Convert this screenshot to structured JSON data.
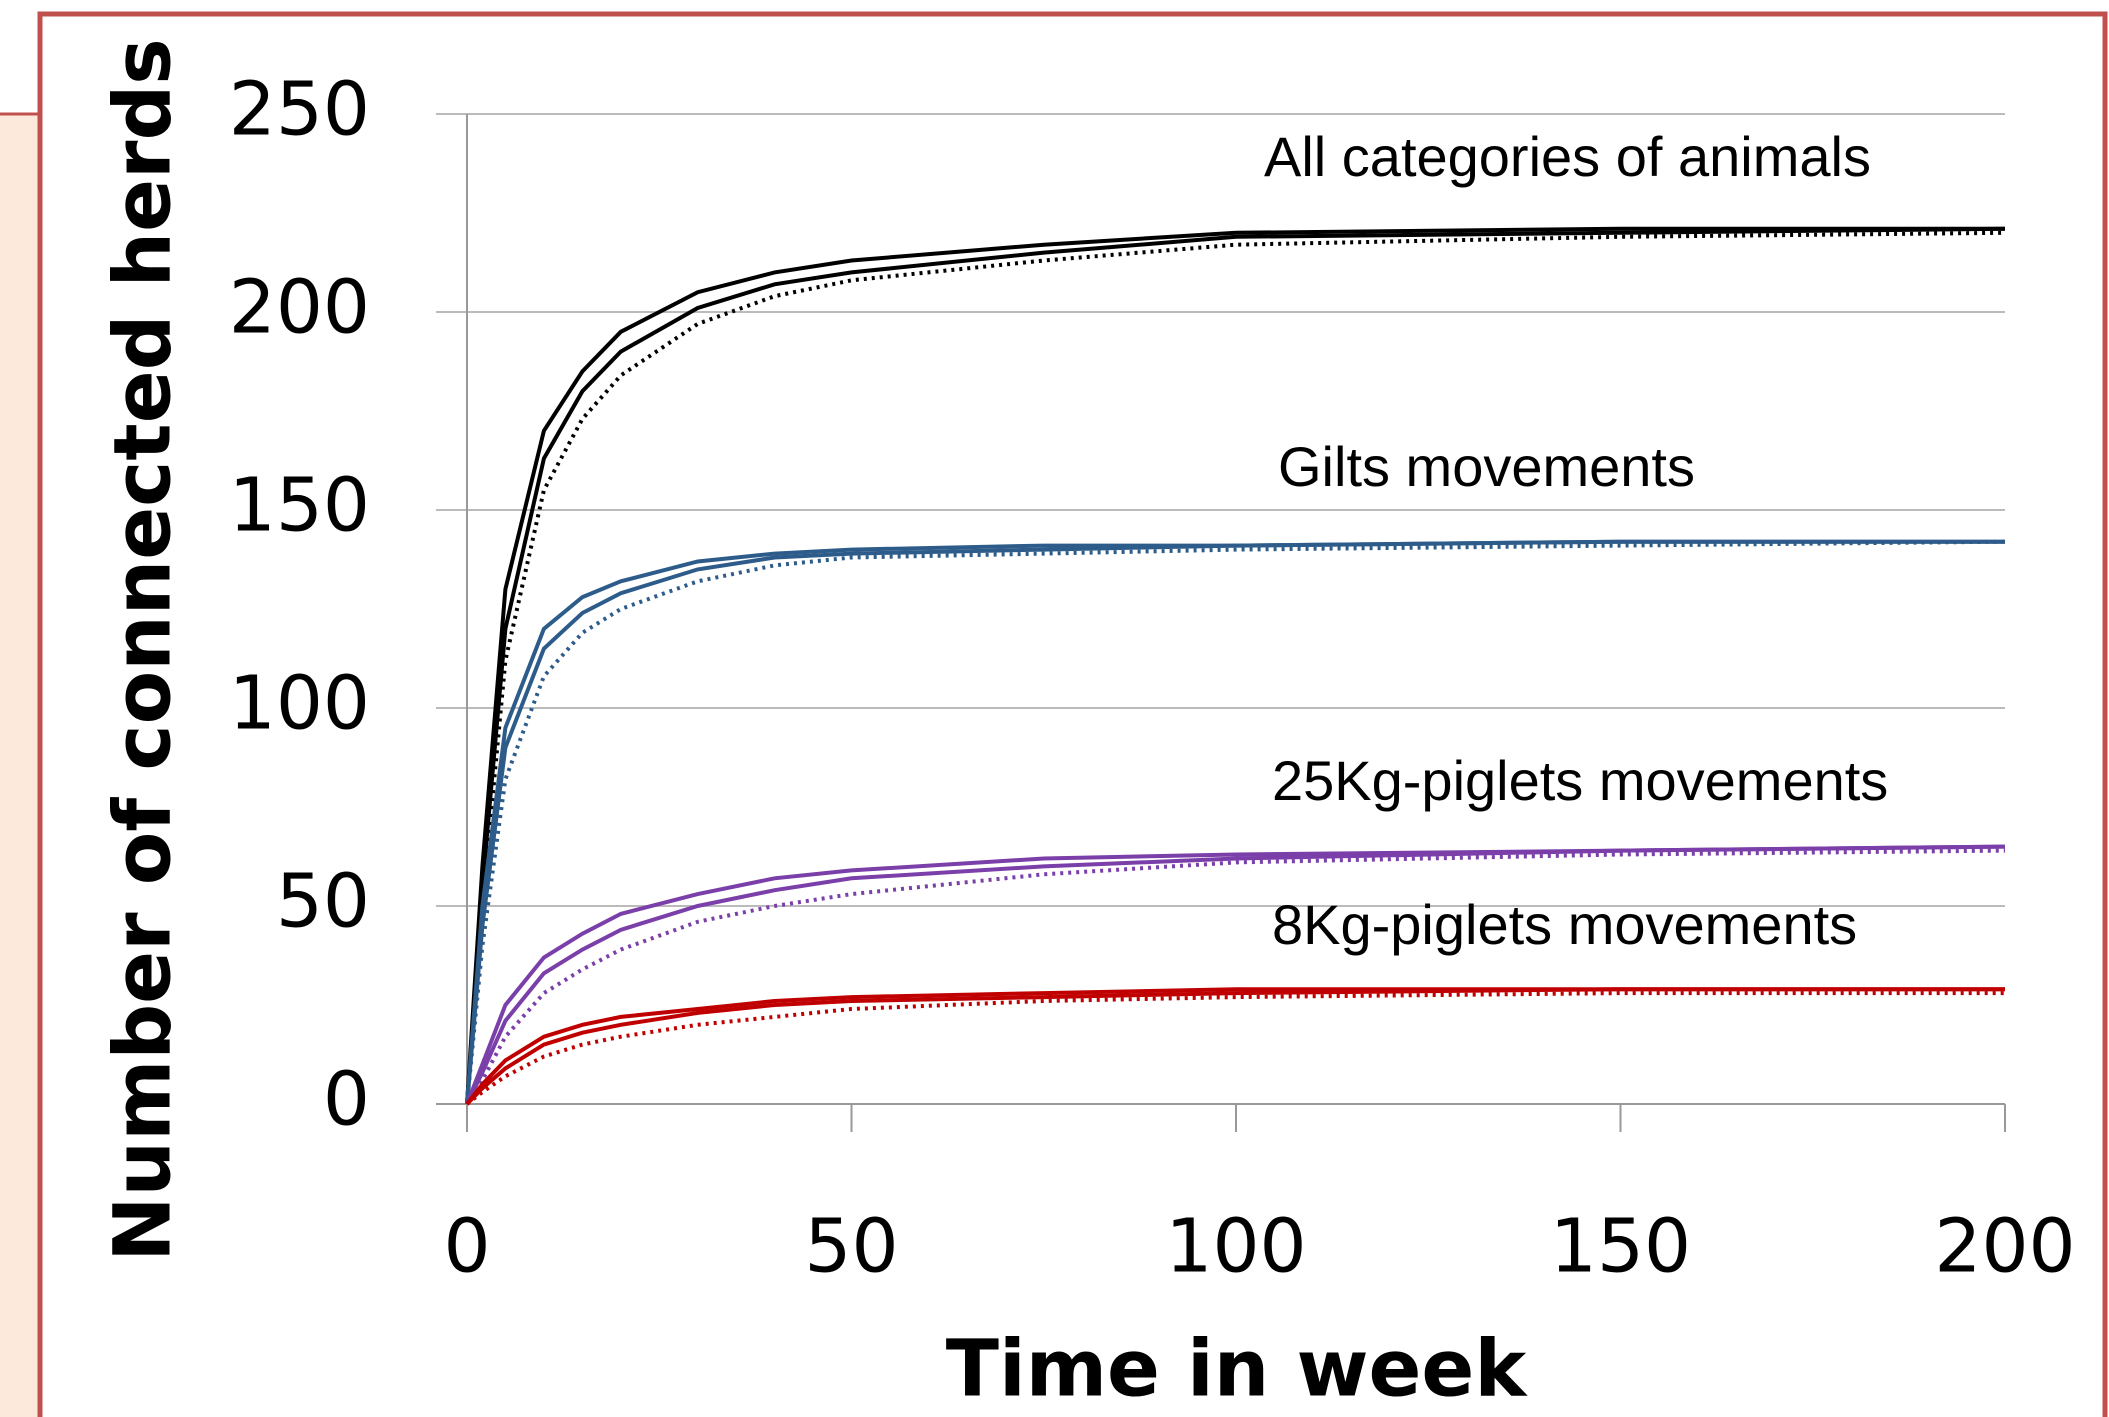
{
  "chart_data": {
    "type": "line",
    "x_label": "Time in week",
    "y_label": "Number of connected herds",
    "x": [
      0,
      2,
      5,
      10,
      15,
      20,
      30,
      40,
      50,
      75,
      100,
      150,
      200
    ],
    "xlim": [
      0,
      200
    ],
    "xticks": [
      0,
      50,
      100,
      150,
      200
    ],
    "ylim": [
      0,
      250
    ],
    "yticks": [
      0,
      50,
      100,
      150,
      200,
      250
    ],
    "grid": true,
    "annotations": [
      "All categories of animals",
      "Gilts movements",
      "25Kg-piglets movements",
      "8Kg-piglets movements"
    ],
    "series": [
      {
        "color": "#000000",
        "dash": "solid",
        "values": [
          0,
          60,
          130,
          170,
          185,
          195,
          205,
          210,
          213,
          217,
          220,
          221,
          221
        ]
      },
      {
        "color": "#000000",
        "dash": "solid",
        "values": [
          0,
          55,
          120,
          163,
          180,
          190,
          201,
          207,
          210,
          215,
          219,
          220,
          221
        ]
      },
      {
        "color": "#000000",
        "dash": "dotted",
        "values": [
          0,
          50,
          112,
          155,
          173,
          184,
          197,
          204,
          208,
          213,
          217,
          219,
          220
        ]
      },
      {
        "color": "#2e5c8a",
        "dash": "solid",
        "values": [
          0,
          50,
          95,
          120,
          128,
          132,
          137,
          139,
          140,
          141,
          141,
          142,
          142
        ]
      },
      {
        "color": "#2e5c8a",
        "dash": "solid",
        "values": [
          0,
          45,
          90,
          115,
          124,
          129,
          135,
          138,
          139,
          140,
          141,
          142,
          142
        ]
      },
      {
        "color": "#2e5c8a",
        "dash": "dotted",
        "values": [
          0,
          40,
          82,
          108,
          119,
          125,
          132,
          136,
          138,
          139,
          140,
          141,
          142
        ]
      },
      {
        "color": "#7a3fa8",
        "dash": "solid",
        "values": [
          0,
          10,
          25,
          37,
          43,
          48,
          53,
          57,
          59,
          62,
          63,
          64,
          65
        ]
      },
      {
        "color": "#7a3fa8",
        "dash": "solid",
        "values": [
          0,
          8,
          21,
          33,
          39,
          44,
          50,
          54,
          57,
          60,
          62,
          64,
          65
        ]
      },
      {
        "color": "#7a3fa8",
        "dash": "dotted",
        "values": [
          0,
          6,
          17,
          28,
          34,
          39,
          46,
          50,
          53,
          58,
          61,
          63,
          64
        ]
      },
      {
        "color": "#c00000",
        "dash": "solid",
        "values": [
          0,
          5,
          11,
          17,
          20,
          22,
          24,
          26,
          27,
          28,
          29,
          29,
          29
        ]
      },
      {
        "color": "#c00000",
        "dash": "solid",
        "values": [
          0,
          4,
          9,
          15,
          18,
          20,
          23,
          25,
          26,
          27,
          28,
          29,
          29
        ]
      },
      {
        "color": "#c00000",
        "dash": "dotted",
        "values": [
          0,
          3,
          7,
          12,
          15,
          17,
          20,
          22,
          24,
          26,
          27,
          28,
          28
        ]
      }
    ]
  }
}
